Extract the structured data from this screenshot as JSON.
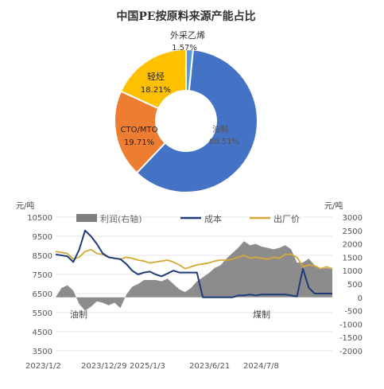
{
  "chart_data": [
    {
      "type": "pie",
      "title": "中国PE按原料来源产能占比",
      "slices": [
        {
          "label": "油制",
          "value_text": "60.51%",
          "value": 60.51,
          "color": "#4472C4"
        },
        {
          "label": "CTO/MTO",
          "value_text": "19.71%",
          "value": 19.71,
          "color": "#ED7D31"
        },
        {
          "label": "轻烃",
          "value_text": "18.21%",
          "value": 18.21,
          "color": "#FFC000"
        },
        {
          "label": "外采乙烯",
          "value_text": "1.57%",
          "value": 1.57,
          "color": "#5B9BD5"
        }
      ]
    },
    {
      "type": "line",
      "left_unit": "元/吨",
      "right_unit": "元/吨",
      "x_ticks": [
        "2023/1/2",
        "2023/12/29",
        "2025/1/3",
        "2023/6/21",
        "2024/7/8"
      ],
      "y_left": {
        "range": [
          3500,
          10500
        ],
        "ticks": [
          "10500",
          "9500",
          "8500",
          "7500",
          "6500",
          "5500",
          "4500",
          "3500"
        ]
      },
      "y_right": {
        "range": [
          -2000,
          3000
        ],
        "ticks": [
          "3000",
          "2500",
          "2000",
          "1500",
          "1000",
          "500",
          "0",
          "-500",
          "-1000",
          "-1500",
          "-2000"
        ]
      },
      "legend": [
        "利润(右轴)",
        "成本",
        "出厂价"
      ],
      "annotations": [
        "油制",
        "煤制"
      ],
      "series": [
        {
          "name": "利润(右轴)",
          "kind": "area",
          "axis": "right",
          "color": "#7F7F7F",
          "values": [
            0,
            350,
            450,
            250,
            -250,
            -500,
            -350,
            -150,
            -200,
            -300,
            -200,
            -400,
            100,
            400,
            500,
            650,
            650,
            650,
            600,
            700,
            500,
            300,
            200,
            350,
            600,
            750,
            900,
            1100,
            1200,
            1450,
            1650,
            1850,
            2100,
            1950,
            2000,
            1900,
            1850,
            1800,
            1850,
            1950,
            1800,
            1300,
            1300,
            1450,
            1200,
            1050,
            1100,
            1050
          ]
        },
        {
          "name": "成本",
          "kind": "line",
          "axis": "left",
          "color": "#1F3B7A",
          "values": [
            8550,
            8500,
            8450,
            8150,
            8800,
            9800,
            9500,
            9100,
            8600,
            8400,
            8350,
            8300,
            8050,
            7700,
            7500,
            7600,
            7650,
            7500,
            7400,
            7550,
            7700,
            7600,
            7600,
            7600,
            7600,
            6300,
            6300,
            6300,
            6300,
            6300,
            6300,
            6400,
            6400,
            6450,
            6400,
            6450,
            6450,
            6450,
            6450,
            6450,
            6400,
            6350,
            7800,
            6800,
            6500,
            6500,
            6500,
            6500
          ]
        },
        {
          "name": "出厂价",
          "kind": "line",
          "axis": "left",
          "color": "#D4A836",
          "values": [
            8700,
            8650,
            8600,
            8300,
            8400,
            8700,
            8800,
            8600,
            8550,
            8400,
            8350,
            8300,
            8400,
            8350,
            8250,
            8200,
            8100,
            8150,
            8200,
            8250,
            8150,
            8000,
            7800,
            7900,
            8000,
            8050,
            8100,
            8200,
            8250,
            8250,
            8300,
            8400,
            8500,
            8350,
            8400,
            8350,
            8300,
            8400,
            8350,
            8550,
            8550,
            8400,
            7900,
            8000,
            7950,
            7800,
            7900,
            7800
          ]
        }
      ]
    }
  ]
}
